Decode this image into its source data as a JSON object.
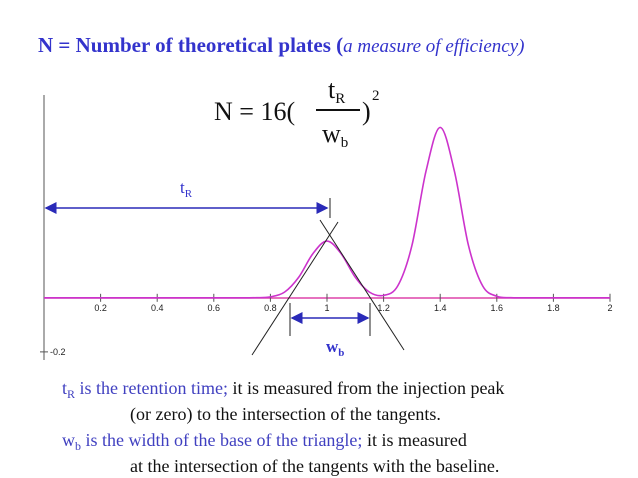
{
  "title": {
    "main": "N = Number of theoretical plates (",
    "italic": "a measure of efficiency)"
  },
  "formula": {
    "lhs": "N = 16(",
    "num": "t",
    "num_sub": "R",
    "den": "w",
    "den_sub": "b",
    "close": ")",
    "power": "2"
  },
  "chart_data": {
    "type": "line",
    "x": [
      0,
      0.6,
      0.65,
      0.7,
      0.75,
      0.8,
      0.85,
      0.9,
      0.95,
      1,
      1.05,
      1.1,
      1.15,
      1.2,
      1.25,
      1.3,
      1.35,
      1.4,
      1.45,
      1.5,
      1.55,
      1.6,
      1.65,
      1.7,
      1.8,
      2
    ],
    "series": [
      {
        "color": "#cc33cc",
        "values": [
          0,
          0,
          0,
          0,
          0.0004,
          0.0035,
          0.021,
          0.076,
          0.163,
          0.21,
          0.163,
          0.076,
          0.021,
          0.009,
          0.044,
          0.193,
          0.469,
          0.63,
          0.469,
          0.193,
          0.044,
          0.0056,
          0.0004,
          0,
          0,
          0
        ]
      }
    ],
    "xlim": [
      0,
      2
    ],
    "xticks": [
      0.2,
      0.4,
      0.6,
      0.8,
      1,
      1.2,
      1.4,
      1.6,
      1.8,
      2
    ],
    "ylim": [
      -0.23,
      0.75
    ],
    "yticks": [
      -0.2
    ],
    "annotations": [
      {
        "text": "t",
        "sub": "R"
      },
      {
        "text": "w",
        "sub": "b"
      }
    ]
  },
  "notes": [
    {
      "sym": "t",
      "sub": "R",
      "def": " is the retention time;",
      "rest": " it is measured from the injection peak"
    },
    {
      "rest": "(or zero) to the intersection of the tangents."
    },
    {
      "sym": "w",
      "sub": "b",
      "def": " is the width of the base of the triangle;",
      "rest": " it is measured"
    },
    {
      "rest": "at the intersection of the tangents with the baseline."
    }
  ]
}
